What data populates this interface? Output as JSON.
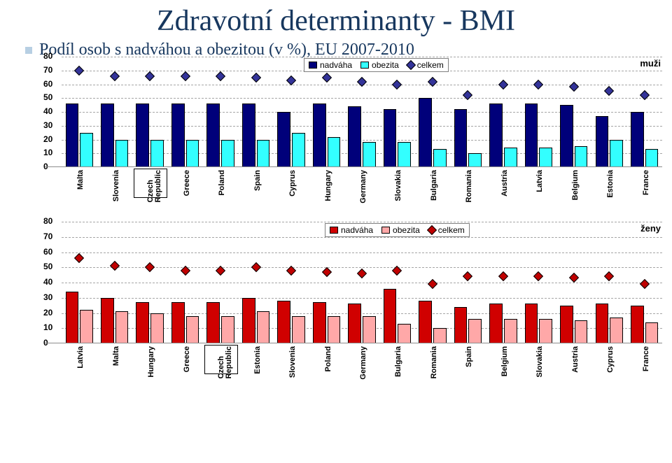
{
  "title": "Zdravotní determinanty - BMI",
  "subtitle": "Podíl osob s nadváhou a obezitou (v %), EU 2007-2010",
  "charts": {
    "men": {
      "type": "bar+scatter",
      "group_label": "muži",
      "ylim": [
        0,
        80
      ],
      "ytick_step": 10,
      "bar1_color": "#00007a",
      "bar2_color": "#33ffff",
      "marker_color": "#333399",
      "grid_color": "#a6a6a6",
      "legend": [
        "nadváha",
        "obezita",
        "celkem"
      ],
      "categories": [
        "Malta",
        "Slovenia",
        "Czech Republic",
        "Greece",
        "Poland",
        "Spain",
        "Cyprus",
        "Hungary",
        "Germany",
        "Slovakia",
        "Bulgaria",
        "Romania",
        "Austria",
        "Latvia",
        "Belgium",
        "Estonia",
        "France"
      ],
      "nadvaha": [
        46,
        46,
        46,
        46,
        46,
        46,
        40,
        46,
        44,
        42,
        50,
        42,
        46,
        46,
        45,
        37,
        40
      ],
      "obezita": [
        25,
        20,
        20,
        20,
        20,
        20,
        25,
        22,
        18,
        18,
        13,
        10,
        14,
        14,
        15,
        20,
        13
      ],
      "celkem": [
        70,
        66,
        66,
        66,
        66,
        65,
        63,
        65,
        62,
        60,
        62,
        52,
        60,
        60,
        58,
        55,
        52
      ]
    },
    "women": {
      "type": "bar+scatter",
      "group_label": "ženy",
      "ylim": [
        0,
        80
      ],
      "ytick_step": 10,
      "bar1_color": "#d00000",
      "bar2_color": "#ffa8a8",
      "marker_color": "#c00000",
      "grid_color": "#a6a6a6",
      "legend": [
        "nadváha",
        "obezita",
        "celkem"
      ],
      "categories": [
        "Latvia",
        "Malta",
        "Hungary",
        "Greece",
        "Czech Republic",
        "Estonia",
        "Slovenia",
        "Poland",
        "Germany",
        "Bulgaria",
        "Romania",
        "Spain",
        "Belgium",
        "Slovakia",
        "Austria",
        "Cyprus",
        "France"
      ],
      "nadvaha": [
        34,
        30,
        27,
        27,
        27,
        30,
        28,
        27,
        26,
        36,
        28,
        24,
        26,
        26,
        25,
        26,
        25
      ],
      "obezita": [
        22,
        21,
        20,
        18,
        18,
        21,
        18,
        18,
        18,
        13,
        10,
        16,
        16,
        16,
        15,
        17,
        14
      ],
      "celkem": [
        56,
        51,
        50,
        48,
        48,
        50,
        48,
        47,
        46,
        48,
        39,
        44,
        44,
        44,
        43,
        44,
        39
      ]
    }
  }
}
